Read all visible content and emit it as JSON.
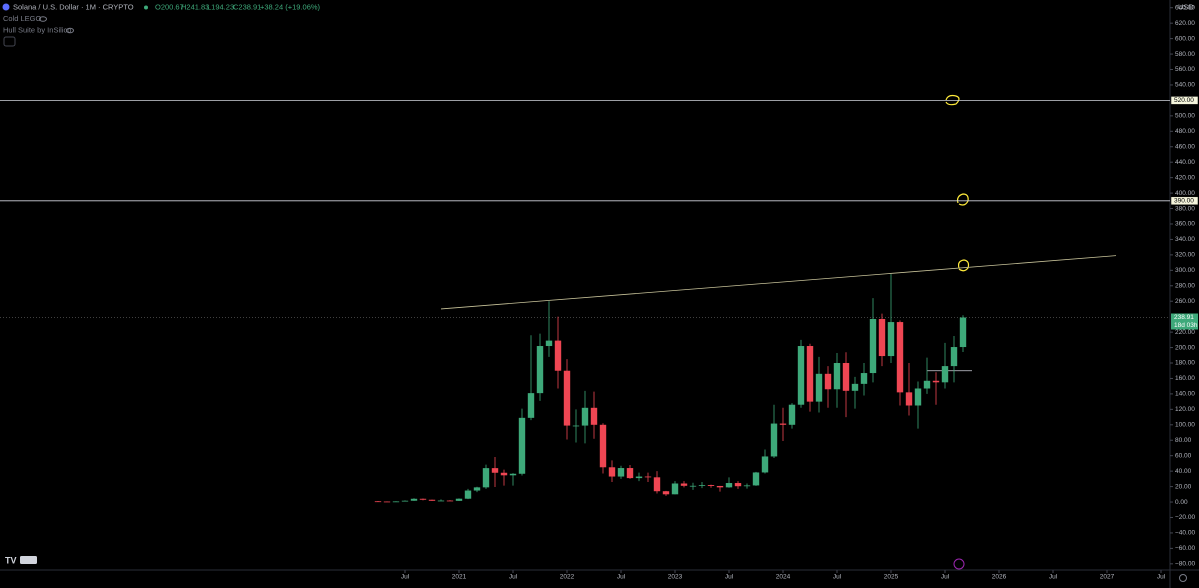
{
  "chart_data": {
    "type": "candlestick",
    "title": "Solana / U.S. Dollar · 1M · CRYPTO",
    "ohlc_legend": {
      "open": "O200.67",
      "high": "H241.83",
      "low": "L194.23",
      "close": "C238.91",
      "change": "+38.24 (+19.06%)"
    },
    "indicators": [
      "Cold LEGO",
      "Hull Suite by InSilico"
    ],
    "currency": "USD",
    "up_color": "#3ea97a",
    "down_color": "#ef4653",
    "x": [
      "2020-04",
      "2020-05",
      "2020-06",
      "2020-07",
      "2020-08",
      "2020-09",
      "2020-10",
      "2020-11",
      "2020-12",
      "2021-01",
      "2021-02",
      "2021-03",
      "2021-04",
      "2021-05",
      "2021-06",
      "2021-07",
      "2021-08",
      "2021-09",
      "2021-10",
      "2021-11",
      "2021-12",
      "2022-01",
      "2022-02",
      "2022-03",
      "2022-04",
      "2022-05",
      "2022-06",
      "2022-07",
      "2022-08",
      "2022-09",
      "2022-10",
      "2022-11",
      "2022-12",
      "2023-01",
      "2023-02",
      "2023-03",
      "2023-04",
      "2023-05",
      "2023-06",
      "2023-07",
      "2023-08",
      "2023-09",
      "2023-10",
      "2023-11",
      "2023-12",
      "2024-01",
      "2024-02",
      "2024-03",
      "2024-04",
      "2024-05",
      "2024-06",
      "2024-07",
      "2024-08",
      "2024-09",
      "2024-10",
      "2024-11",
      "2024-12",
      "2025-01",
      "2025-02",
      "2025-03",
      "2025-04",
      "2025-05",
      "2025-06",
      "2025-07",
      "2025-08",
      "2025-09"
    ],
    "open": [
      0.95,
      0.64,
      0.55,
      0.77,
      1.67,
      4.22,
      2.97,
      1.6,
      1.9,
      1.51,
      4.31,
      14.9,
      19,
      43.9,
      37.9,
      34.6,
      36.6,
      109,
      141,
      202,
      209,
      170,
      99,
      99,
      122,
      100,
      45,
      33,
      44,
      31,
      33,
      32,
      14,
      10,
      24,
      21,
      21,
      22,
      20.8,
      19,
      24.6,
      20.5,
      21.5,
      38.3,
      59,
      101.6,
      100,
      126,
      202,
      130,
      166,
      146,
      180,
      144,
      153,
      167,
      237,
      189,
      233,
      142,
      125,
      147,
      157,
      155,
      176,
      200.67
    ],
    "high": [
      1.31,
      0.82,
      1.06,
      2.2,
      4.96,
      4.5,
      3.1,
      3.5,
      2.4,
      4.8,
      17,
      19.8,
      48.5,
      58.3,
      42,
      37.5,
      121,
      216,
      218,
      260,
      240,
      185,
      120,
      144,
      143,
      102,
      54,
      47,
      48,
      38,
      38,
      40,
      14.5,
      27,
      27,
      25,
      26,
      22.5,
      20.9,
      32,
      27,
      24,
      39,
      68,
      126,
      122,
      128,
      210,
      205,
      188,
      176,
      193,
      194,
      162,
      180,
      264,
      244,
      295,
      235,
      180,
      156,
      187,
      168,
      206,
      215,
      241.83
    ],
    "low": [
      0.51,
      0.5,
      0.54,
      0.72,
      1.47,
      2.08,
      1.48,
      1.47,
      1.47,
      1.37,
      3.8,
      12.8,
      17,
      19.5,
      21.2,
      21.2,
      34.4,
      106,
      131,
      188,
      147,
      81,
      77,
      76,
      82,
      37,
      26,
      30,
      30,
      27,
      26,
      11,
      8,
      9.9,
      19,
      15.8,
      18,
      18.5,
      13.5,
      18.5,
      17,
      17.4,
      21,
      37,
      57,
      79,
      95,
      122,
      117,
      116,
      122,
      122,
      110,
      121,
      138,
      155,
      176,
      180,
      125,
      112,
      95,
      140,
      126,
      147,
      155,
      194.23
    ],
    "close": [
      0.64,
      0.55,
      0.77,
      1.67,
      4.22,
      2.97,
      1.6,
      1.9,
      1.51,
      4.31,
      14.9,
      19,
      43.9,
      37.9,
      34.6,
      36.6,
      109,
      141,
      202,
      209,
      170,
      99,
      99,
      122,
      100,
      45,
      33,
      44,
      31,
      33,
      32,
      14,
      10,
      24,
      21,
      21,
      22,
      20.8,
      19,
      24.6,
      20.5,
      21.5,
      38.3,
      59,
      101.6,
      100,
      126,
      202,
      130,
      166,
      146,
      180,
      144,
      153,
      167,
      237,
      189,
      233,
      142,
      125,
      147,
      157,
      155,
      176,
      200.67,
      238.91
    ],
    "price_tag": "238.91",
    "countdown": "18d 03h",
    "levels": [
      {
        "value": 520,
        "label": "520.00"
      },
      {
        "value": 390,
        "label": "390.00"
      }
    ],
    "trendline": {
      "x": [
        "2020-11",
        "2027-02"
      ],
      "values": [
        250,
        319
      ]
    },
    "segment": {
      "x": [
        "2025-05",
        "2025-10"
      ],
      "values": [
        170,
        170
      ]
    },
    "xlim": [
      "2016-10",
      "2027-08"
    ],
    "xticks": [
      {
        "value": "2020-07",
        "label": "Jul"
      },
      {
        "value": "2021-01",
        "label": "2021"
      },
      {
        "value": "2021-07",
        "label": "Jul"
      },
      {
        "value": "2022-01",
        "label": "2022"
      },
      {
        "value": "2022-07",
        "label": "Jul"
      },
      {
        "value": "2023-01",
        "label": "2023"
      },
      {
        "value": "2023-07",
        "label": "Jul"
      },
      {
        "value": "2024-01",
        "label": "2024"
      },
      {
        "value": "2024-07",
        "label": "Jul"
      },
      {
        "value": "2025-01",
        "label": "2025"
      },
      {
        "value": "2025-07",
        "label": "Jul"
      },
      {
        "value": "2026-01",
        "label": "2026"
      },
      {
        "value": "2026-07",
        "label": "Jul"
      },
      {
        "value": "2027-01",
        "label": "2027"
      },
      {
        "value": "2027-07",
        "label": "Jul"
      }
    ],
    "ylim": [
      -88,
      650
    ],
    "yticks": [
      {
        "value": 640,
        "label": "640.00"
      },
      {
        "value": 620,
        "label": "620.00"
      },
      {
        "value": 600,
        "label": "600.00"
      },
      {
        "value": 580,
        "label": "580.00"
      },
      {
        "value": 560,
        "label": "560.00"
      },
      {
        "value": 540,
        "label": "540.00"
      },
      {
        "value": 500,
        "label": "500.00"
      },
      {
        "value": 480,
        "label": "480.00"
      },
      {
        "value": 460,
        "label": "460.00"
      },
      {
        "value": 440,
        "label": "440.00"
      },
      {
        "value": 420,
        "label": "420.00"
      },
      {
        "value": 400,
        "label": "400.00"
      },
      {
        "value": 380,
        "label": "380.00"
      },
      {
        "value": 360,
        "label": "360.00"
      },
      {
        "value": 340,
        "label": "340.00"
      },
      {
        "value": 320,
        "label": "320.00"
      },
      {
        "value": 300,
        "label": "300.00"
      },
      {
        "value": 280,
        "label": "280.00"
      },
      {
        "value": 260,
        "label": "260.00"
      },
      {
        "value": 220,
        "label": "220.00"
      },
      {
        "value": 200,
        "label": "200.00"
      },
      {
        "value": 180,
        "label": "180.00"
      },
      {
        "value": 160,
        "label": "160.00"
      },
      {
        "value": 140,
        "label": "140.00"
      },
      {
        "value": 120,
        "label": "120.00"
      },
      {
        "value": 100,
        "label": "100.00"
      },
      {
        "value": 80,
        "label": "80.00"
      },
      {
        "value": 60,
        "label": "60.00"
      },
      {
        "value": 40,
        "label": "40.00"
      },
      {
        "value": 20,
        "label": "20.00"
      },
      {
        "value": 0,
        "label": "0.00"
      },
      {
        "value": -20,
        "label": "−20.00"
      },
      {
        "value": -40,
        "label": "−40.00"
      },
      {
        "value": -60,
        "label": "−60.00"
      },
      {
        "value": -80,
        "label": "−80.00"
      }
    ]
  }
}
